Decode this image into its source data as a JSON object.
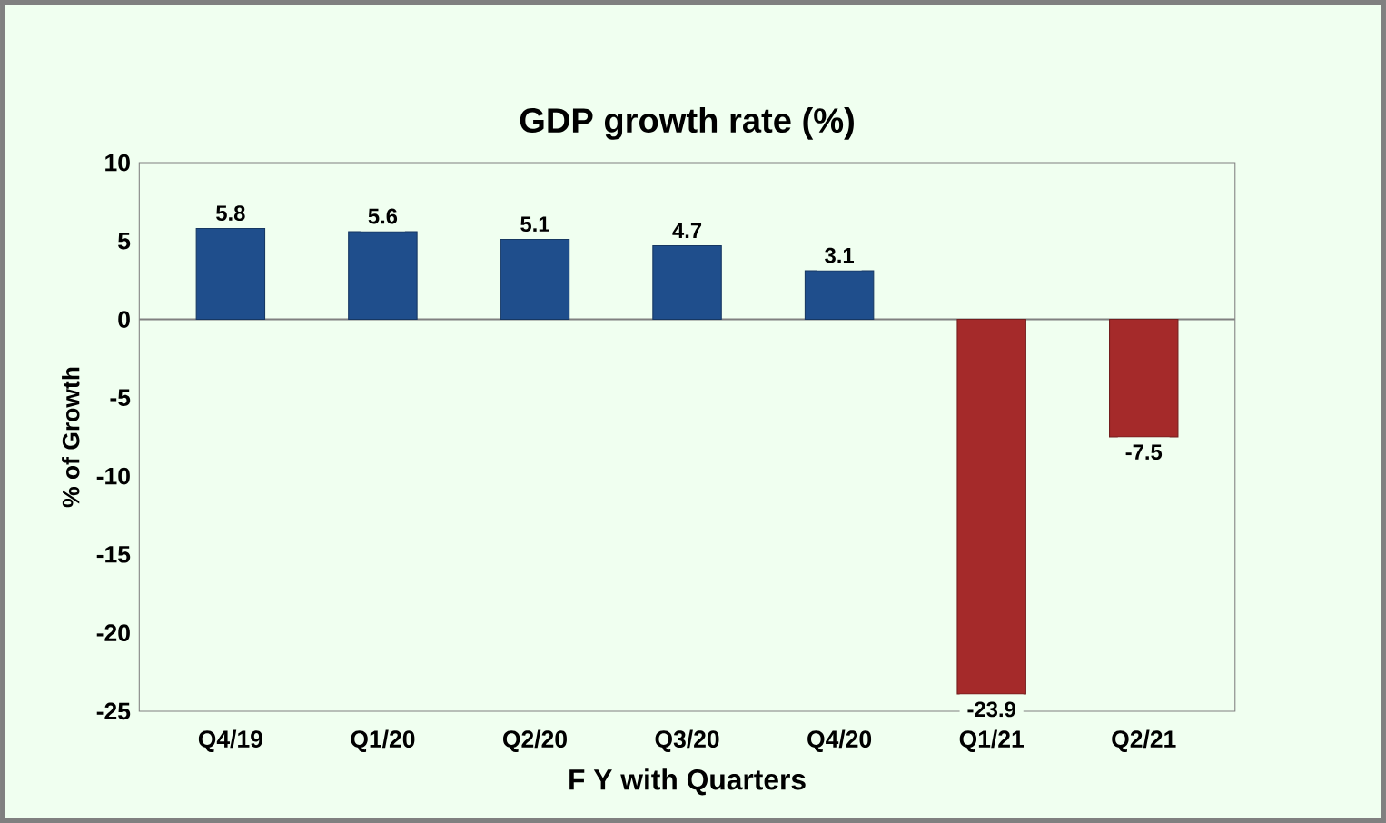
{
  "chart_data": {
    "type": "bar",
    "title": "GDP growth rate (%)",
    "xlabel": "F Y with Quarters",
    "ylabel": "% of  Growth",
    "categories": [
      "Q4/19",
      "Q1/20",
      "Q2/20",
      "Q3/20",
      "Q4/20",
      "Q1/21",
      "Q2/21"
    ],
    "values": [
      5.8,
      5.6,
      5.1,
      4.7,
      3.1,
      -23.9,
      -7.5
    ],
    "colors": [
      "#1f4e8c",
      "#1f4e8c",
      "#1f4e8c",
      "#1f4e8c",
      "#1f4e8c",
      "#a52a2a",
      "#a52a2a"
    ],
    "ylim": [
      -25,
      10
    ],
    "yticks": [
      -25,
      -20,
      -15,
      -10,
      -5,
      0,
      5,
      10
    ],
    "data_labels": true
  }
}
